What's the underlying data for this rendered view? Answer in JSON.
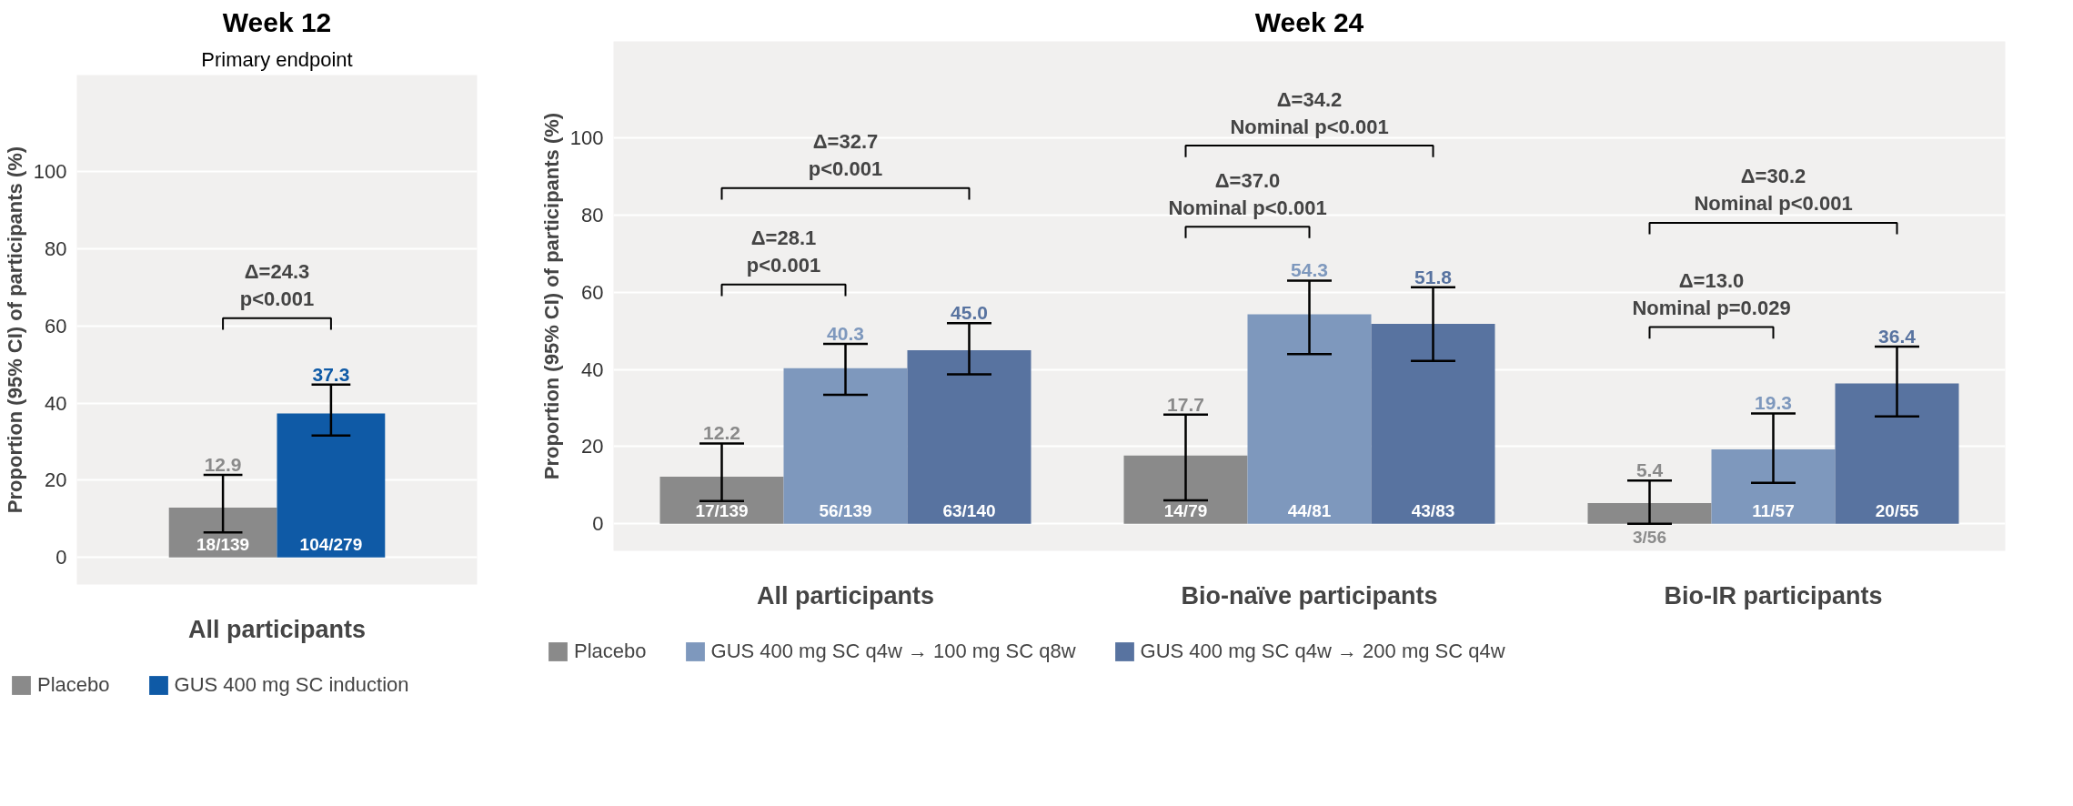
{
  "chart_data": [
    {
      "type": "bar",
      "title": "Week 12",
      "subtitle": "Primary endpoint",
      "ylabel": "Proportion (95% CI) of participants (%)",
      "categories": [
        "All participants"
      ],
      "series": [
        {
          "name": "Placebo",
          "color": "#8a8a8a",
          "values": [
            12.9
          ],
          "value_labels": [
            "12.9"
          ],
          "errors": [
            [
              6.5,
              21.4
            ]
          ]
        },
        {
          "name": "GUS 400 mg SC induction",
          "color": "#0f5aa6",
          "values": [
            37.3
          ],
          "value_labels": [
            "37.3"
          ],
          "errors": [
            [
              31.6,
              44.8
            ]
          ]
        }
      ],
      "ylim": [
        -7,
        125
      ],
      "yticks": [
        0,
        20,
        40,
        60,
        80,
        100
      ],
      "grid": "y",
      "legend": "bottom",
      "annotations": [
        "Δ=24.3\np<0.001",
        "18/139",
        "104/279"
      ]
    },
    {
      "type": "bar",
      "title": "Week 24",
      "ylabel": "Proportion (95% CI) of participants (%)",
      "categories": [
        "All participants",
        "Bio-naïve participants",
        "Bio-IR participants"
      ],
      "series": [
        {
          "name": "Placebo",
          "color": "#8a8a8a",
          "values": [
            12.2,
            17.7,
            5.4
          ],
          "value_labels": [
            "12.2",
            "17.7",
            "5.4"
          ],
          "errors": [
            [
              5.9,
              20.8
            ],
            [
              6.1,
              28.3
            ],
            [
              0,
              11.2
            ]
          ]
        },
        {
          "name": "GUS 400 mg SC q4w → 100 mg SC q8w",
          "color": "#7e98bd",
          "values": [
            40.3,
            54.3,
            19.3
          ],
          "value_labels": [
            "40.3",
            "54.3",
            "19.3"
          ],
          "errors": [
            [
              33.4,
              46.6
            ],
            [
              44.0,
              63.0
            ],
            [
              10.6,
              28.6
            ]
          ]
        },
        {
          "name": "GUS 400 mg SC q4w → 200 mg SC q4w",
          "color": "#5873a0",
          "values": [
            45.0,
            51.8,
            36.4
          ],
          "value_labels": [
            "45.0",
            "51.8",
            "36.4"
          ],
          "errors": [
            [
              38.7,
              52.0
            ],
            [
              42.2,
              61.3
            ],
            [
              27.8,
              45.9
            ]
          ]
        }
      ],
      "ylim": [
        -7,
        125
      ],
      "yticks": [
        0,
        20,
        40,
        60,
        80,
        100
      ],
      "grid": "y",
      "legend": "bottom",
      "annotations": [
        "Δ=28.1\np<0.001",
        "Δ=32.7\np<0.001",
        "Δ=37.0\nNominal p<0.001",
        "Δ=34.2\nNominal p<0.001",
        "Δ=13.0\nNominal p=0.029",
        "Δ=30.2\nNominal p<0.001",
        "17/139",
        "56/139",
        "63/140",
        "14/79",
        "44/81",
        "43/83",
        "3/56",
        "11/57",
        "20/55"
      ]
    }
  ]
}
